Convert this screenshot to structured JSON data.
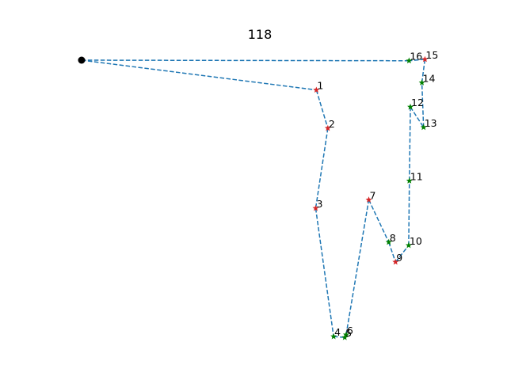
{
  "chart_data": {
    "type": "line",
    "title": "118",
    "xlabel": "",
    "ylabel": "",
    "axes_visible": false,
    "grid": false,
    "xlim": [
      0,
      1
    ],
    "ylim": [
      0,
      1
    ],
    "line_color": "#1f77b4",
    "line_style": "dashed",
    "start_point": {
      "x": 0.0,
      "y": 1.0,
      "color": "#000000"
    },
    "points": [
      {
        "label": "1",
        "x": 0.694,
        "y": 0.898,
        "color": "#d62728"
      },
      {
        "label": "2",
        "x": 0.728,
        "y": 0.767,
        "color": "#d62728"
      },
      {
        "label": "3",
        "x": 0.692,
        "y": 0.493,
        "color": "#d62728"
      },
      {
        "label": "4",
        "x": 0.745,
        "y": 0.054,
        "color": "#008000"
      },
      {
        "label": "5",
        "x": 0.778,
        "y": 0.051,
        "color": "#008000"
      },
      {
        "label": "6",
        "x": 0.782,
        "y": 0.06,
        "color": "#008000"
      },
      {
        "label": "7",
        "x": 0.849,
        "y": 0.522,
        "color": "#d62728"
      },
      {
        "label": "8",
        "x": 0.908,
        "y": 0.377,
        "color": "#008000"
      },
      {
        "label": "9",
        "x": 0.928,
        "y": 0.309,
        "color": "#d62728"
      },
      {
        "label": "10",
        "x": 0.967,
        "y": 0.366,
        "color": "#008000"
      },
      {
        "label": "11",
        "x": 0.969,
        "y": 0.587,
        "color": "#008000"
      },
      {
        "label": "12",
        "x": 0.972,
        "y": 0.84,
        "color": "#008000"
      },
      {
        "label": "13",
        "x": 1.011,
        "y": 0.77,
        "color": "#008000"
      },
      {
        "label": "14",
        "x": 1.006,
        "y": 0.923,
        "color": "#008000"
      },
      {
        "label": "15",
        "x": 1.015,
        "y": 1.003,
        "color": "#d62728"
      },
      {
        "label": "16",
        "x": 0.968,
        "y": 0.998,
        "color": "#008000"
      }
    ],
    "closes_to_start": true
  }
}
